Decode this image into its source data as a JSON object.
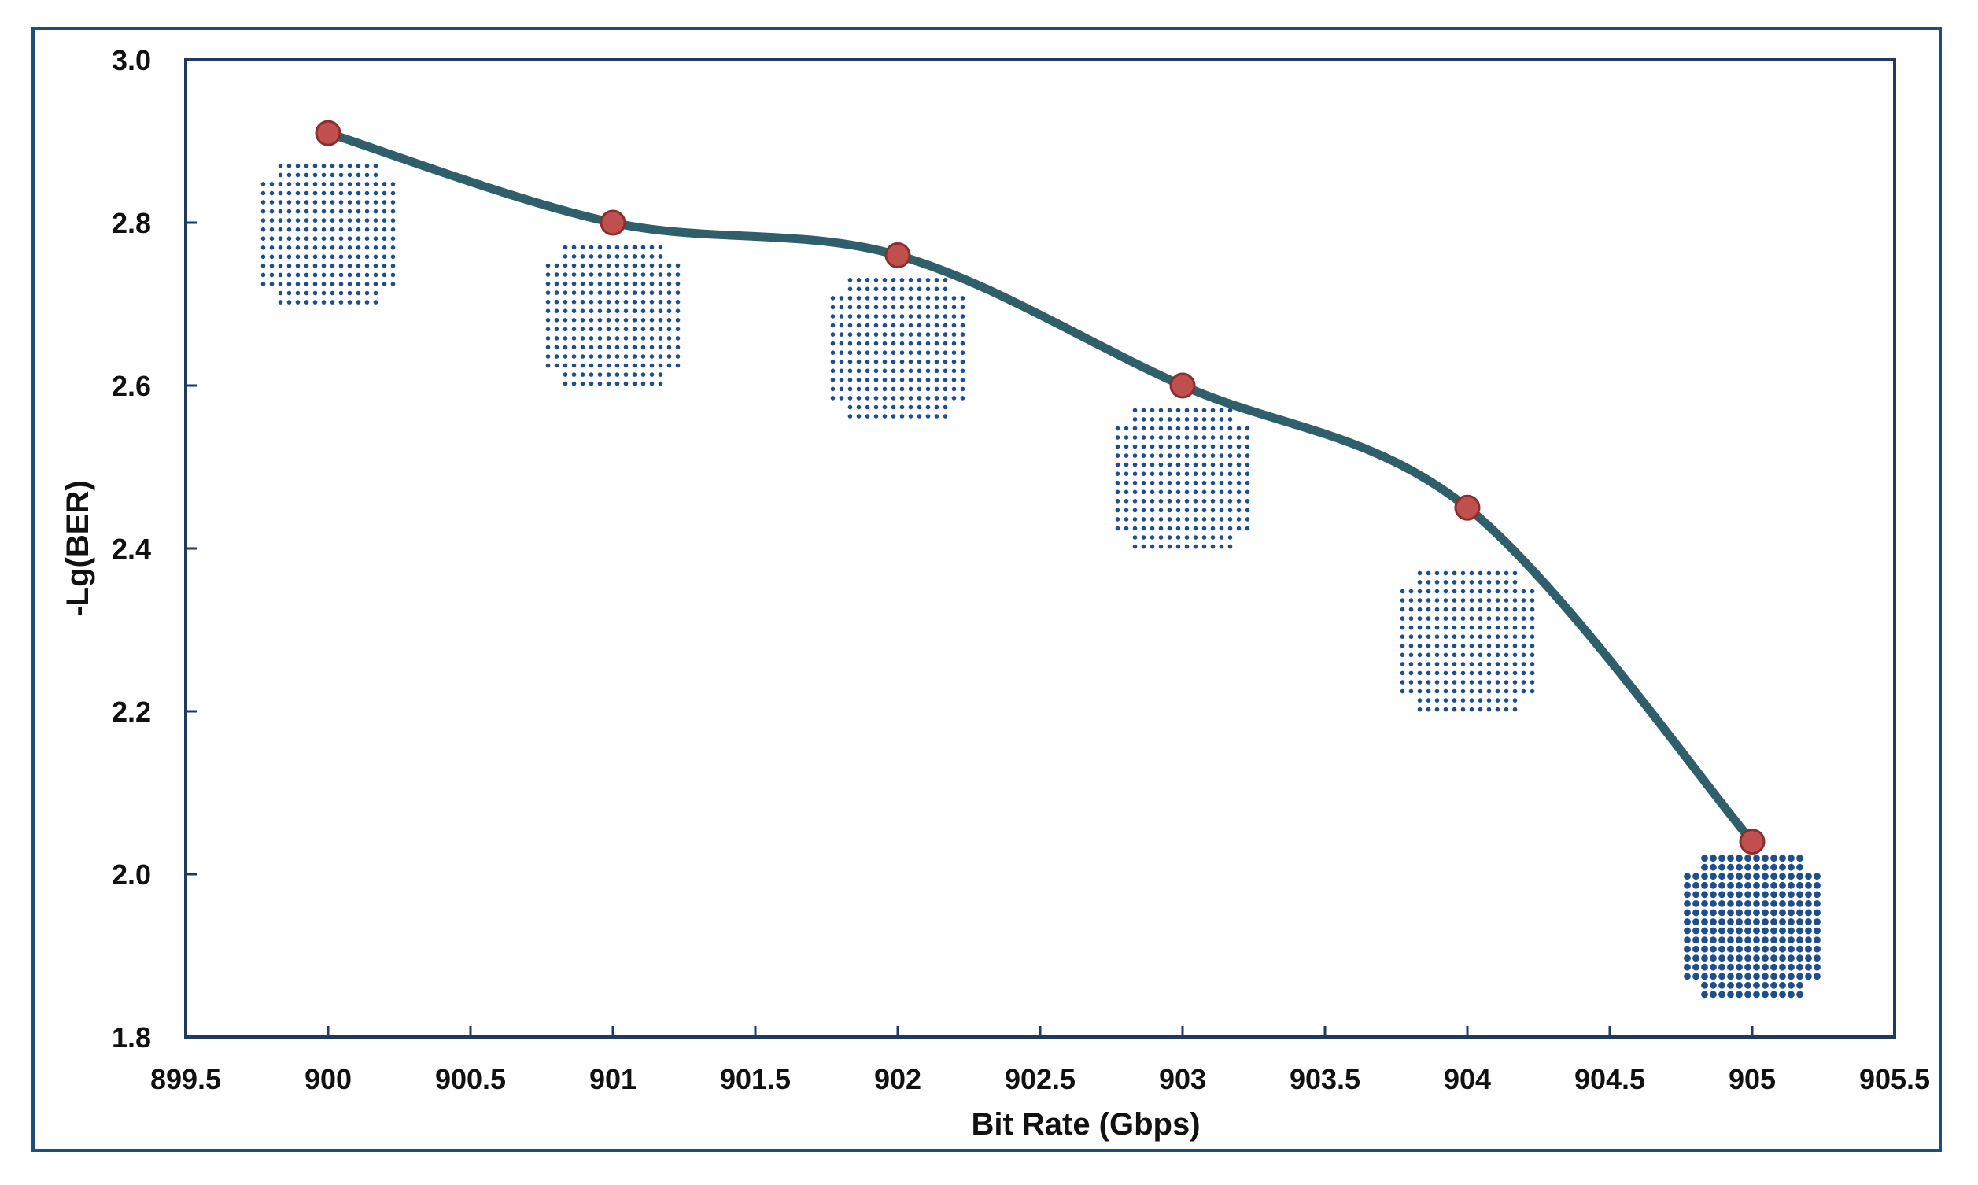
{
  "chart_data": {
    "type": "line",
    "title": "",
    "xlabel": "Bit Rate (Gbps)",
    "ylabel": "-Lg(BER)",
    "xlim": [
      899.5,
      905.5
    ],
    "ylim": [
      1.8,
      3.0
    ],
    "x_ticks": [
      "899.5",
      "900",
      "900.5",
      "901",
      "901.5",
      "902",
      "902.5",
      "903",
      "903.5",
      "904",
      "904.5",
      "905",
      "905.5"
    ],
    "y_ticks": [
      "1.8",
      "2.0",
      "2.2",
      "2.4",
      "2.6",
      "2.8",
      "3.0"
    ],
    "grid": false,
    "legend": "none",
    "series": [
      {
        "name": "-Lg(BER)",
        "x": [
          900,
          901,
          902,
          903,
          904,
          905
        ],
        "values": [
          2.91,
          2.8,
          2.76,
          2.6,
          2.45,
          2.04
        ],
        "line_color": "#2e5f6b",
        "marker_color": "#c0504d",
        "marker_edge": "#8b2e2e",
        "smooth": true
      }
    ],
    "annotations": [
      {
        "type": "constellation-inset",
        "x": 900,
        "y_center": 2.79
      },
      {
        "type": "constellation-inset",
        "x": 901,
        "y_center": 2.69
      },
      {
        "type": "constellation-inset",
        "x": 902,
        "y_center": 2.65
      },
      {
        "type": "constellation-inset",
        "x": 903,
        "y_center": 2.49
      },
      {
        "type": "constellation-inset",
        "x": 904,
        "y_center": 2.29
      },
      {
        "type": "constellation-inset",
        "x": 905,
        "y_center": 1.94
      }
    ],
    "inset_color": "#1f4e8c"
  }
}
